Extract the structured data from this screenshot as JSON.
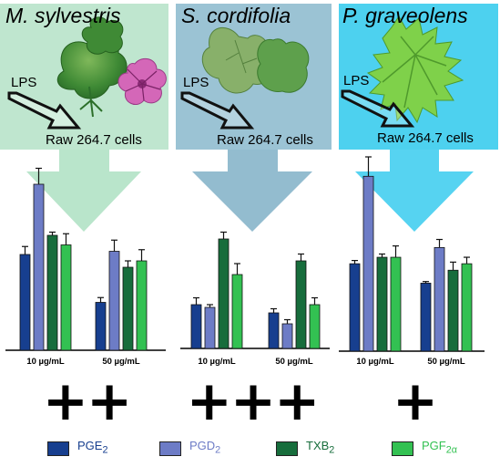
{
  "panels": [
    {
      "species": "M. sylvestris",
      "lps_label": "LPS",
      "cells_label": "Raw 264.7 cells",
      "bg_color": "#bfe6cf",
      "arrow_color": "#b9e5cb",
      "rating": "++"
    },
    {
      "species": "S. cordifolia",
      "lps_label": "LPS",
      "cells_label": "Raw 264.7 cells",
      "bg_color": "#9bc3d4",
      "arrow_color": "#93bccf",
      "rating": "+++"
    },
    {
      "species": "P. graveolens",
      "lps_label": "LPS",
      "cells_label": "Raw 264.7 cells",
      "bg_color": "#4dd1ef",
      "arrow_color": "#56d3f1",
      "rating": "+"
    }
  ],
  "chart_data": [
    {
      "type": "bar",
      "panel": "M. sylvestris",
      "categories": [
        "10 µg/mL",
        "50 µg/mL"
      ],
      "series": [
        {
          "name": "PGE2",
          "values": [
            30,
            15
          ],
          "errors": [
            2.5,
            1.5
          ]
        },
        {
          "name": "PGD2",
          "values": [
            52,
            31
          ],
          "errors": [
            5,
            3.5
          ]
        },
        {
          "name": "TXB2",
          "values": [
            36,
            26
          ],
          "errors": [
            1,
            2
          ]
        },
        {
          "name": "PGF2α",
          "values": [
            33,
            28
          ],
          "errors": [
            3.5,
            3.5
          ]
        }
      ]
    },
    {
      "type": "bar",
      "panel": "S. cordifolia",
      "categories": [
        "10 µg/mL",
        "50 µg/mL"
      ],
      "series": [
        {
          "name": "PGE2",
          "values": [
            16,
            13
          ],
          "errors": [
            2.5,
            1.5
          ]
        },
        {
          "name": "PGD2",
          "values": [
            15,
            9
          ],
          "errors": [
            1,
            1.5
          ]
        },
        {
          "name": "TXB2",
          "values": [
            40,
            32
          ],
          "errors": [
            2.5,
            2.5
          ]
        },
        {
          "name": "PGF2α",
          "values": [
            27,
            16
          ],
          "errors": [
            4,
            2.5
          ]
        }
      ]
    },
    {
      "type": "bar",
      "panel": "P. graveolens",
      "categories": [
        "10 µg/mL",
        "50 µg/mL"
      ],
      "series": [
        {
          "name": "PGE2",
          "values": [
            27,
            21
          ],
          "errors": [
            1,
            0.5
          ]
        },
        {
          "name": "PGD2",
          "values": [
            54,
            32
          ],
          "errors": [
            6,
            2.5
          ]
        },
        {
          "name": "TXB2",
          "values": [
            29,
            25
          ],
          "errors": [
            1,
            2.5
          ]
        },
        {
          "name": "PGF2α",
          "values": [
            29,
            27
          ],
          "errors": [
            3.5,
            2
          ]
        }
      ]
    }
  ],
  "legend": [
    {
      "name": "PGE",
      "sub": "2",
      "color": "#173f8f",
      "text_color": "#173f8f"
    },
    {
      "name": "PGD",
      "sub": "2",
      "color": "#6d7cc6",
      "text_color": "#6d7cc6"
    },
    {
      "name": "TXB",
      "sub": "2",
      "color": "#176d3c",
      "text_color": "#176d3c"
    },
    {
      "name": "PGF",
      "sub": "2α",
      "color": "#33c152",
      "text_color": "#33c152"
    }
  ],
  "icons": [
    "mallow-leaf-flower-icon",
    "heart-leaf-icon",
    "geranium-leaf-icon"
  ]
}
